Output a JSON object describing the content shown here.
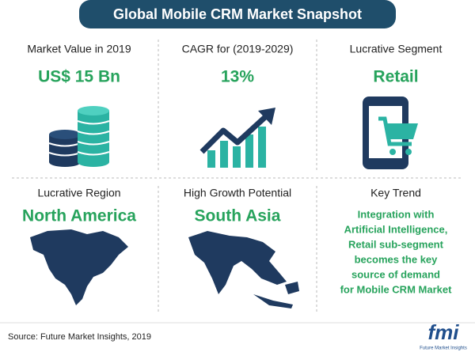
{
  "header": {
    "title": "Global Mobile CRM Market Snapshot"
  },
  "cells": [
    {
      "label": "Market Value in 2019",
      "value": "US$ 15 Bn"
    },
    {
      "label": "CAGR for (2019-2029)",
      "value": "13%"
    },
    {
      "label": "Lucrative Segment",
      "value": "Retail"
    },
    {
      "label": "Lucrative Region",
      "value": "North America"
    },
    {
      "label": "High Growth Potential",
      "value": "South Asia"
    },
    {
      "label": "Key Trend",
      "lines": [
        "Integration with",
        "Artificial Intelligence,",
        "Retail sub-segment",
        "becomes the key",
        "source of demand",
        "for Mobile CRM Market"
      ]
    }
  ],
  "footer": {
    "source": "Source: Future Market Insights, 2019",
    "logo": "fmi",
    "logo_caption": "Future Market Insights"
  }
}
